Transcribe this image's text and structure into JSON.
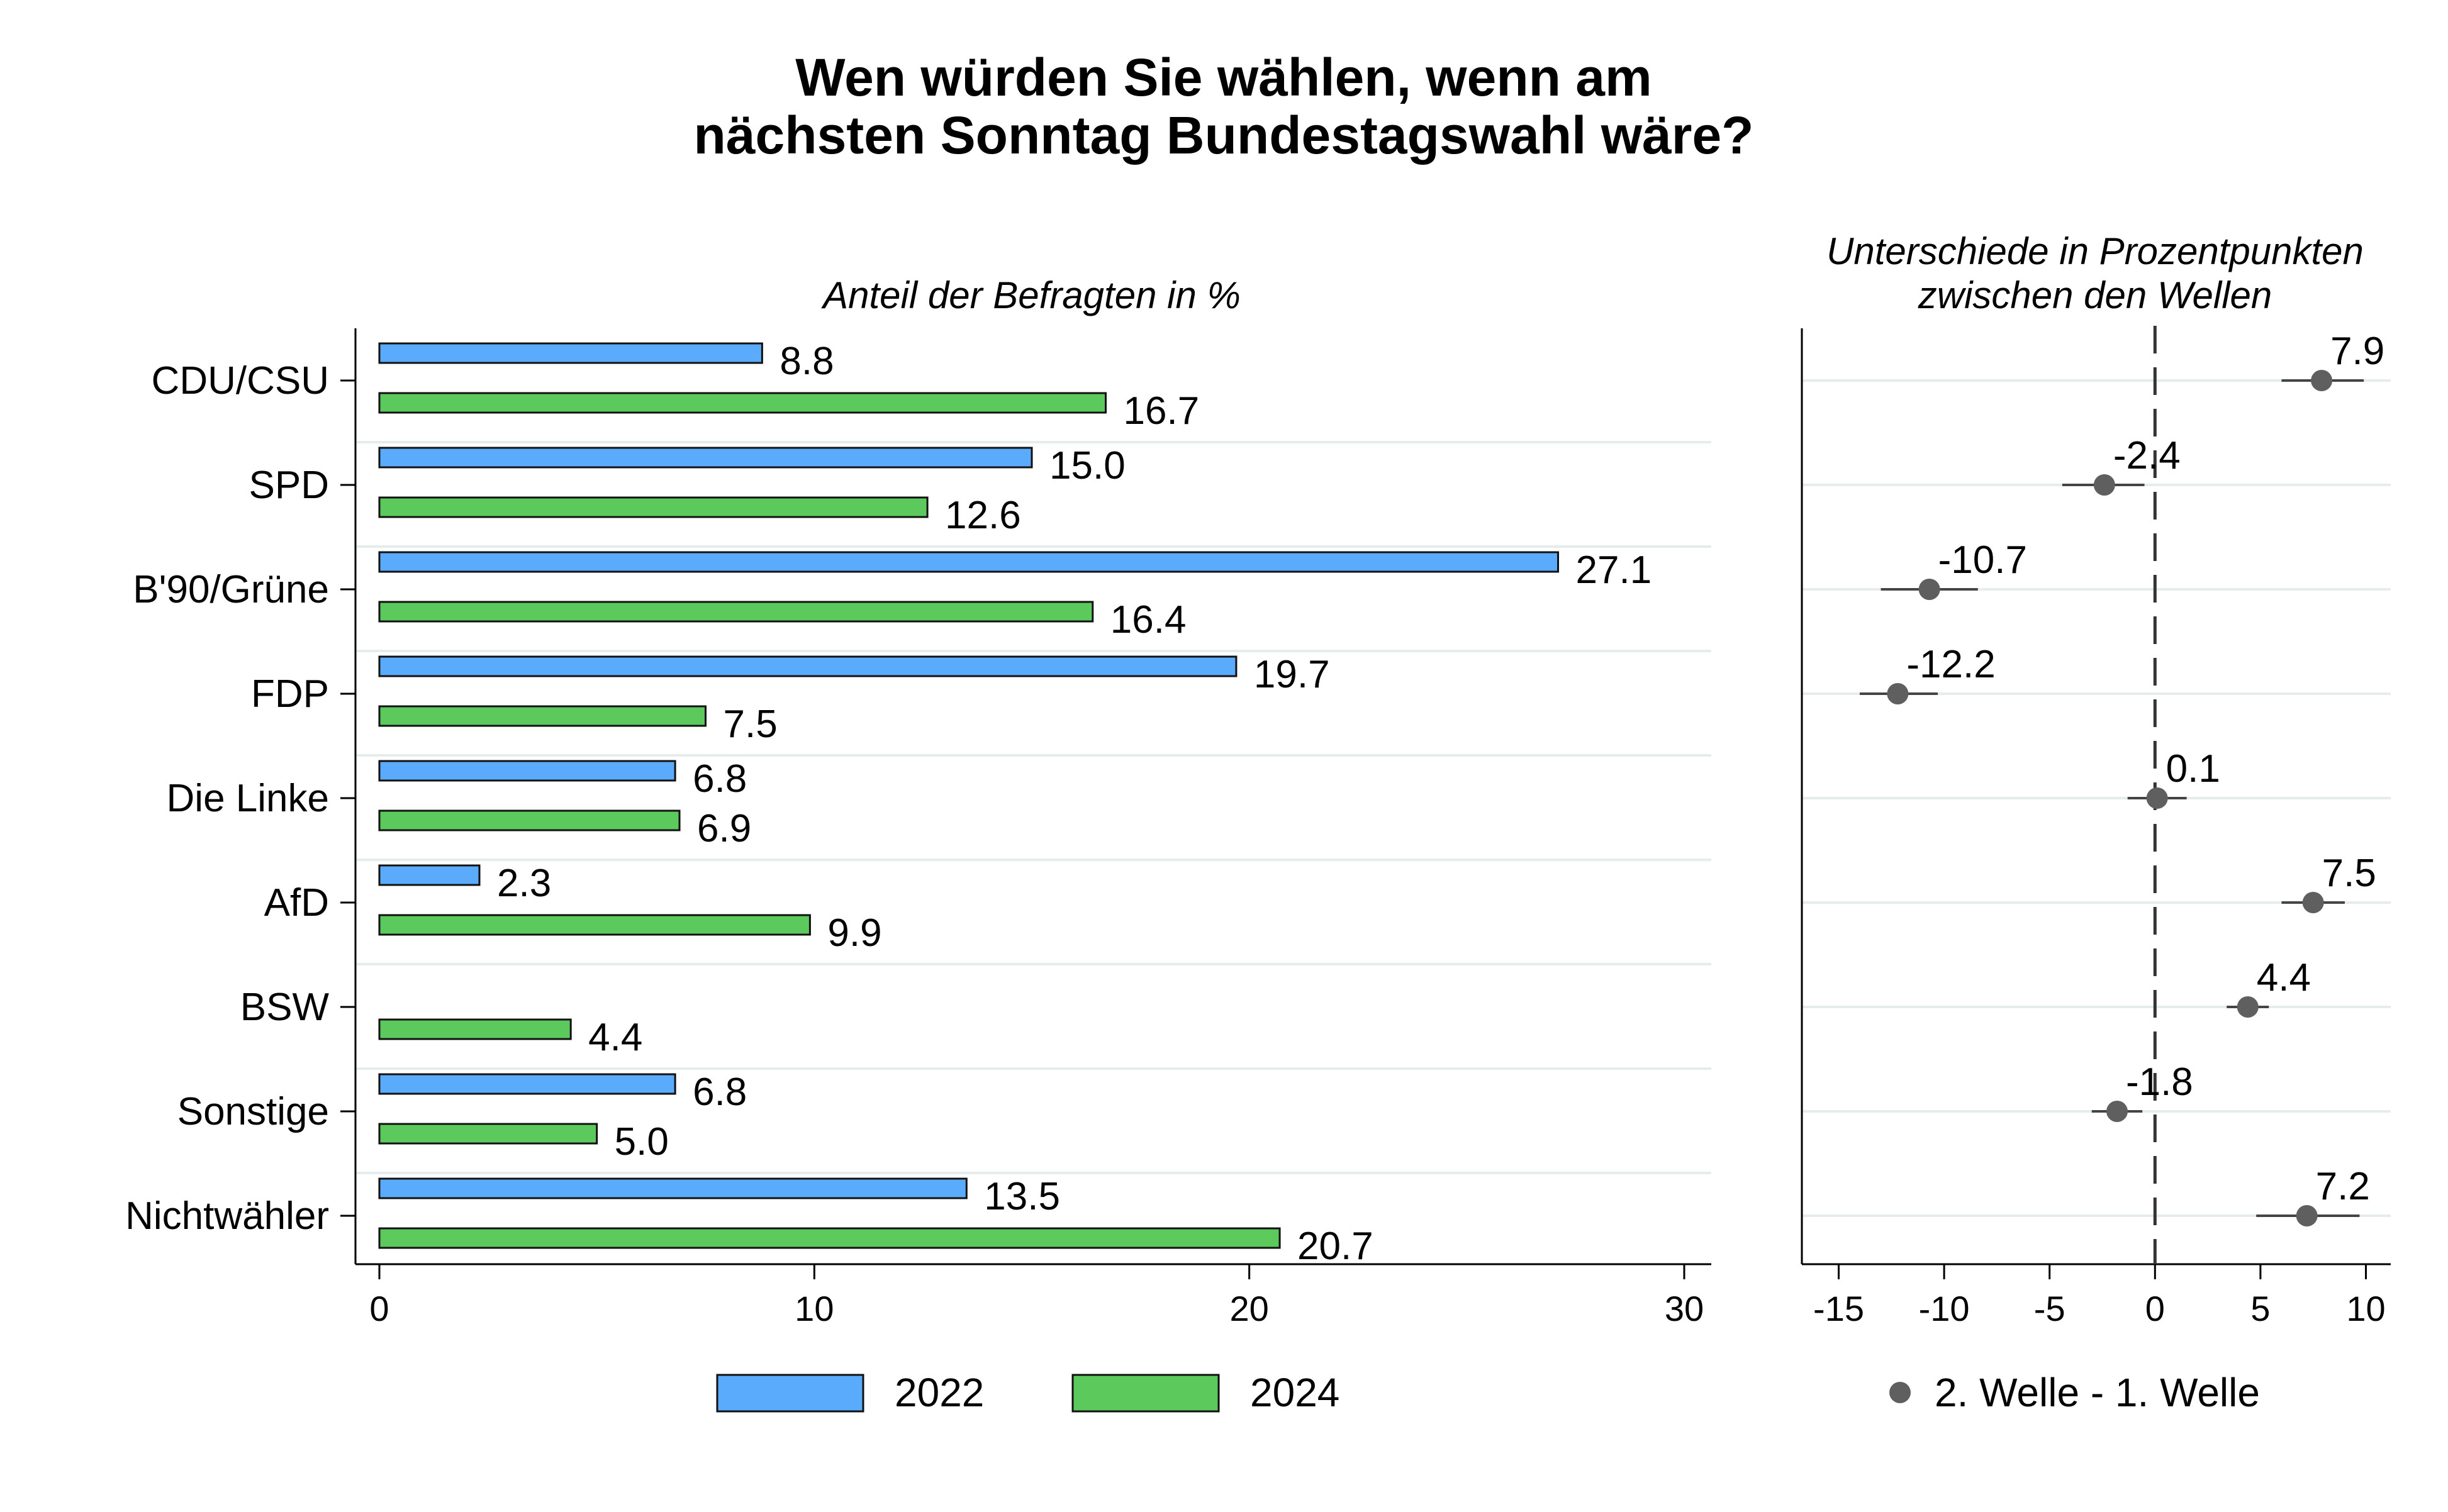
{
  "chart_data": [
    {
      "type": "bar",
      "title_lines": [
        "Wen würden Sie wählen, wenn am",
        "nächsten Sonntag Bundestagswahl wäre?"
      ],
      "subtitle": "Anteil der Befragten in %",
      "categories": [
        "CDU/CSU",
        "SPD",
        "B'90/Grüne",
        "FDP",
        "Die Linke",
        "AfD",
        "BSW",
        "Sonstige",
        "Nichtwähler"
      ],
      "series": [
        {
          "name": "2022",
          "color": "#5aabfb",
          "values": [
            8.8,
            15.0,
            27.1,
            19.7,
            6.8,
            2.3,
            null,
            6.8,
            13.5
          ]
        },
        {
          "name": "2024",
          "color": "#5bc95b",
          "values": [
            16.7,
            12.6,
            16.4,
            7.5,
            6.9,
            9.9,
            4.4,
            5.0,
            20.7
          ]
        }
      ],
      "orientation": "horizontal",
      "xlim": [
        0,
        30
      ],
      "xticks": [
        0,
        10,
        20,
        30
      ],
      "legend_position": "bottom"
    },
    {
      "type": "scatter",
      "subtitle_lines": [
        "Unterschiede in Prozentpunkten",
        "zwischen den Wellen"
      ],
      "categories": [
        "CDU/CSU",
        "SPD",
        "B'90/Grüne",
        "FDP",
        "Die Linke",
        "AfD",
        "BSW",
        "Sonstige",
        "Nichtwähler"
      ],
      "series": [
        {
          "name": "2. Welle - 1. Welle",
          "color": "#5f5f5f",
          "values": [
            7.9,
            -2.4,
            -10.7,
            -12.2,
            0.1,
            7.5,
            4.4,
            -1.8,
            7.2
          ],
          "ci_low": [
            6.0,
            -4.4,
            -13.0,
            -14.0,
            -1.3,
            6.0,
            3.4,
            -3.0,
            4.8
          ],
          "ci_high": [
            9.9,
            -0.5,
            -8.4,
            -10.3,
            1.5,
            9.0,
            5.4,
            -0.6,
            9.7
          ]
        }
      ],
      "xlim": [
        -16,
        11
      ],
      "xticks": [
        -15,
        -10,
        -5,
        0,
        5,
        10
      ],
      "reference_line": 0,
      "legend_position": "bottom"
    }
  ]
}
